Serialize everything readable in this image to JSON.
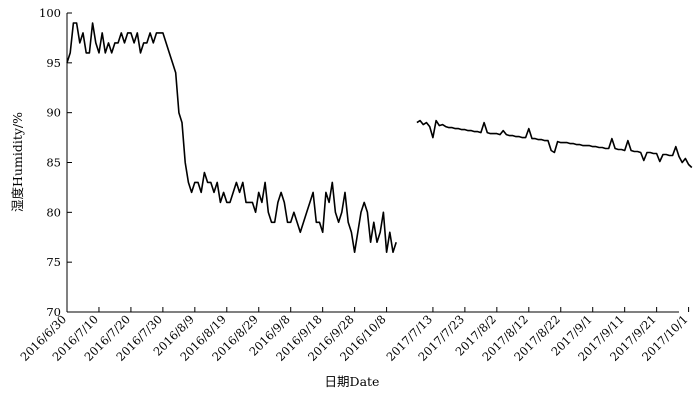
{
  "chart_data": {
    "type": "line",
    "xlabel": "日期Date",
    "ylabel": "湿度Humidity/%",
    "ylim": [
      70,
      100
    ],
    "yticks": [
      70,
      75,
      80,
      85,
      90,
      95,
      100
    ],
    "grid": false,
    "xticks": [
      "2016/6/30",
      "2016/7/10",
      "2016/7/20",
      "2016/7/30",
      "2016/8/9",
      "2016/8/19",
      "2016/8/29",
      "2016/9/8",
      "2016/9/18",
      "2016/9/28",
      "2016/10/8",
      "2017/7/13",
      "2017/7/23",
      "2017/8/2",
      "2017/8/12",
      "2017/8/22",
      "2017/9/1",
      "2017/9/11",
      "2017/9/21",
      "2017/10/1"
    ],
    "series": [
      {
        "period": "2016",
        "start_date": "2016/6/30",
        "values": [
          95,
          96,
          99,
          99,
          97,
          98,
          96,
          96,
          99,
          97,
          96,
          98,
          96,
          97,
          96,
          97,
          97,
          98,
          97,
          98,
          98,
          97,
          98,
          96,
          97,
          97,
          98,
          97,
          98,
          98,
          98,
          97,
          96,
          95,
          94,
          90,
          89,
          85,
          83,
          82,
          83,
          83,
          82,
          84,
          83,
          83,
          82,
          83,
          81,
          82,
          81,
          81,
          82,
          83,
          82,
          83,
          81,
          81,
          81,
          80,
          82,
          81,
          83,
          80,
          79,
          79,
          81,
          82,
          81,
          79,
          79,
          80,
          79,
          78,
          79,
          80,
          81,
          82,
          79,
          79,
          78,
          82,
          81,
          83,
          80,
          79,
          80,
          82,
          79,
          78,
          76,
          78,
          80,
          81,
          80,
          77,
          79,
          77,
          78,
          80,
          76,
          78,
          76,
          77
        ]
      },
      {
        "period": "2017",
        "start_date": "2017/7/8",
        "values": [
          89,
          89.2,
          88.8,
          89,
          88.6,
          87.5,
          89.2,
          88.7,
          88.8,
          88.6,
          88.5,
          88.5,
          88.4,
          88.4,
          88.3,
          88.3,
          88.2,
          88.2,
          88.1,
          88.1,
          88,
          89,
          88,
          87.9,
          87.9,
          87.9,
          87.8,
          88.2,
          87.8,
          87.7,
          87.7,
          87.6,
          87.6,
          87.5,
          87.5,
          88.4,
          87.4,
          87.4,
          87.3,
          87.3,
          87.2,
          87.2,
          86.2,
          86,
          87.1,
          87,
          87,
          87,
          86.9,
          86.9,
          86.8,
          86.8,
          86.7,
          86.7,
          86.7,
          86.6,
          86.6,
          86.5,
          86.5,
          86.4,
          86.4,
          87.4,
          86.4,
          86.3,
          86.3,
          86.2,
          87.2,
          86.2,
          86.1,
          86.1,
          86,
          85.2,
          86,
          86,
          85.9,
          85.9,
          85.1,
          85.8,
          85.8,
          85.7,
          85.7,
          86.6,
          85.6,
          85,
          85.4,
          84.8,
          84.5
        ]
      }
    ]
  }
}
